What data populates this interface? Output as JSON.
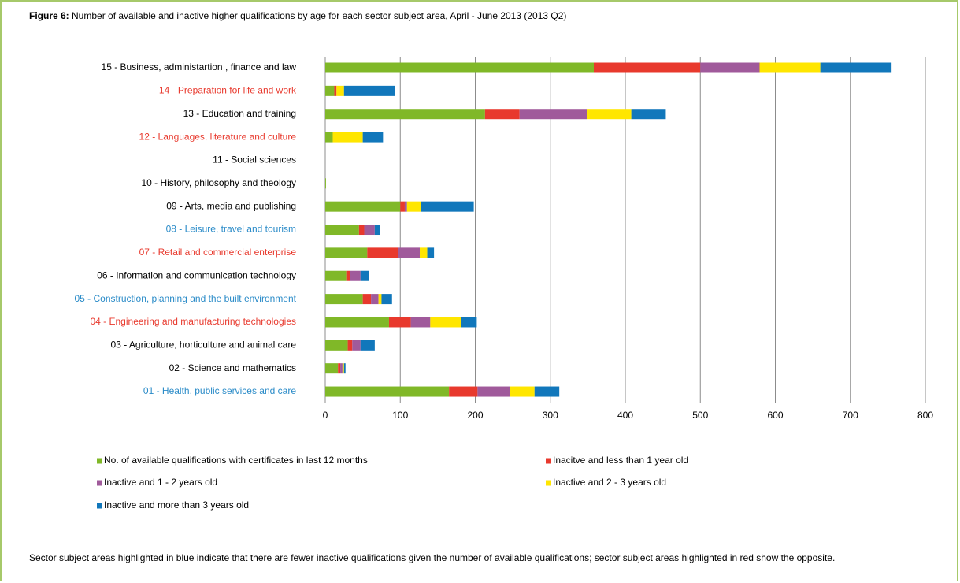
{
  "chart_data": {
    "type": "stacked-bar-horizontal",
    "figure_label": "Figure 6:",
    "title": "Number of available and inactive higher qualifications by age for each sector subject area, April - June 2013 (2013 Q2)",
    "categories": [
      "15 - Business, administartion , finance and law",
      "14 - Preparation for life and work",
      "13 - Education and training",
      "12 - Languages, literature and culture",
      "11 - Social sciences",
      "10 - History, philosophy and theology",
      "09 - Arts, media and publishing",
      "08 - Leisure, travel and tourism",
      "07 - Retail and commercial enterprise",
      "06 - Information and communication technology",
      "05 - Construction, planning and the built environment",
      "04 - Engineering and manufacturing technologies",
      "03 - Agriculture, horticulture and animal care",
      "02 - Science and mathematics",
      "01 - Health, public services and care"
    ],
    "category_colors": [
      "#000000",
      "#e8392d",
      "#000000",
      "#e8392d",
      "#000000",
      "#000000",
      "#000000",
      "#2a8bc8",
      "#e8392d",
      "#000000",
      "#2a8bc8",
      "#e8392d",
      "#000000",
      "#000000",
      "#2a8bc8"
    ],
    "series": [
      {
        "name": "No. of available qualifications with certificates in last 12 months",
        "color": "#80b828",
        "values": [
          358,
          12,
          213,
          10,
          0,
          1,
          100,
          45,
          56,
          28,
          50,
          85,
          30,
          17,
          165
        ]
      },
      {
        "name": "Inacitve and less than 1 year old",
        "color": "#e8392d",
        "values": [
          142,
          3,
          46,
          0,
          0,
          0,
          6,
          7,
          41,
          5,
          11,
          29,
          6,
          3,
          38
        ]
      },
      {
        "name": "Inactive and 1 - 2 years old",
        "color": "#a05a9b",
        "values": [
          79,
          0,
          90,
          0,
          0,
          0,
          3,
          14,
          29,
          14,
          10,
          26,
          11,
          3,
          43
        ]
      },
      {
        "name": "Inactive and 2 - 3 years old",
        "color": "#ffe600",
        "values": [
          81,
          10,
          59,
          40,
          0,
          0,
          19,
          0,
          10,
          0,
          4,
          41,
          0,
          2,
          33
        ]
      },
      {
        "name": "Inactive and more than 3 years old",
        "color": "#1177bb",
        "values": [
          95,
          68,
          46,
          27,
          0,
          0,
          70,
          7,
          9,
          11,
          14,
          21,
          19,
          2,
          33
        ]
      }
    ],
    "xlim": [
      0,
      800
    ],
    "xticks": [
      0,
      100,
      200,
      300,
      400,
      500,
      600,
      700,
      800
    ],
    "grid": true,
    "legend": "bottom",
    "note": "Sector subject areas highlighted in blue indicate that there are fewer inactive qualifications given the number of available qualifications; sector subject areas highlighted in red show the opposite."
  }
}
